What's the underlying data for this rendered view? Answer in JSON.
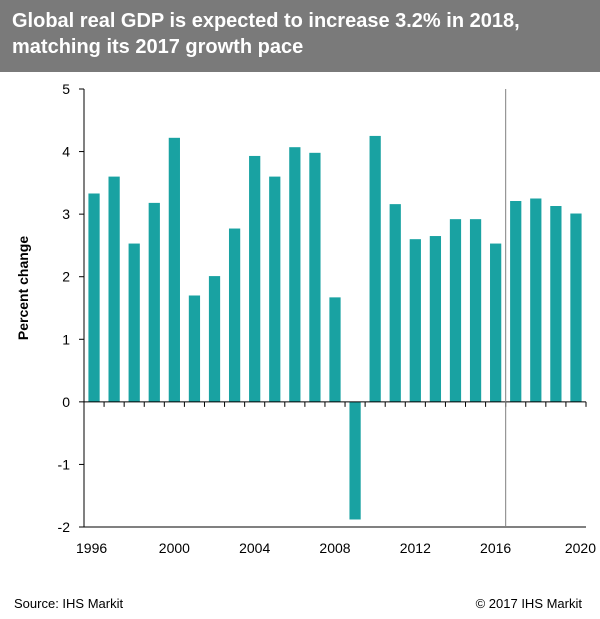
{
  "header": {
    "title_line1": "Global  real GDP  is expected to increase 3.2% in 2018,",
    "title_line2": "matching its 2017 growth pace"
  },
  "chart_data": {
    "type": "bar",
    "title": "Global  real GDP  is expected to increase 3.2% in 2018, matching its 2017 growth pace",
    "xlabel": "",
    "ylabel": "Percent change",
    "ylim": [
      -2,
      5
    ],
    "yticks": [
      -2,
      -1,
      0,
      1,
      2,
      3,
      4,
      5
    ],
    "xticks": [
      "1996",
      "2000",
      "2004",
      "2008",
      "2012",
      "2016",
      "2020"
    ],
    "grid": false,
    "categories": [
      "1996",
      "1997",
      "1998",
      "1999",
      "2000",
      "2001",
      "2002",
      "2003",
      "2004",
      "2005",
      "2006",
      "2007",
      "2008",
      "2009",
      "2010",
      "2011",
      "2012",
      "2013",
      "2014",
      "2015",
      "2016",
      "2017",
      "2018",
      "2019",
      "2020"
    ],
    "values": [
      3.33,
      3.6,
      2.53,
      3.18,
      4.22,
      1.7,
      2.01,
      2.77,
      3.93,
      3.6,
      4.07,
      3.98,
      1.67,
      -1.88,
      4.25,
      3.16,
      2.6,
      2.65,
      2.92,
      2.92,
      2.53,
      3.21,
      3.25,
      3.13,
      3.01
    ],
    "bar_color": "#19a2a2",
    "forecast_divider_after": "2016"
  },
  "footer": {
    "source": "Source:  IHS Markit",
    "copyright": "© 2017  IHS Markit"
  }
}
